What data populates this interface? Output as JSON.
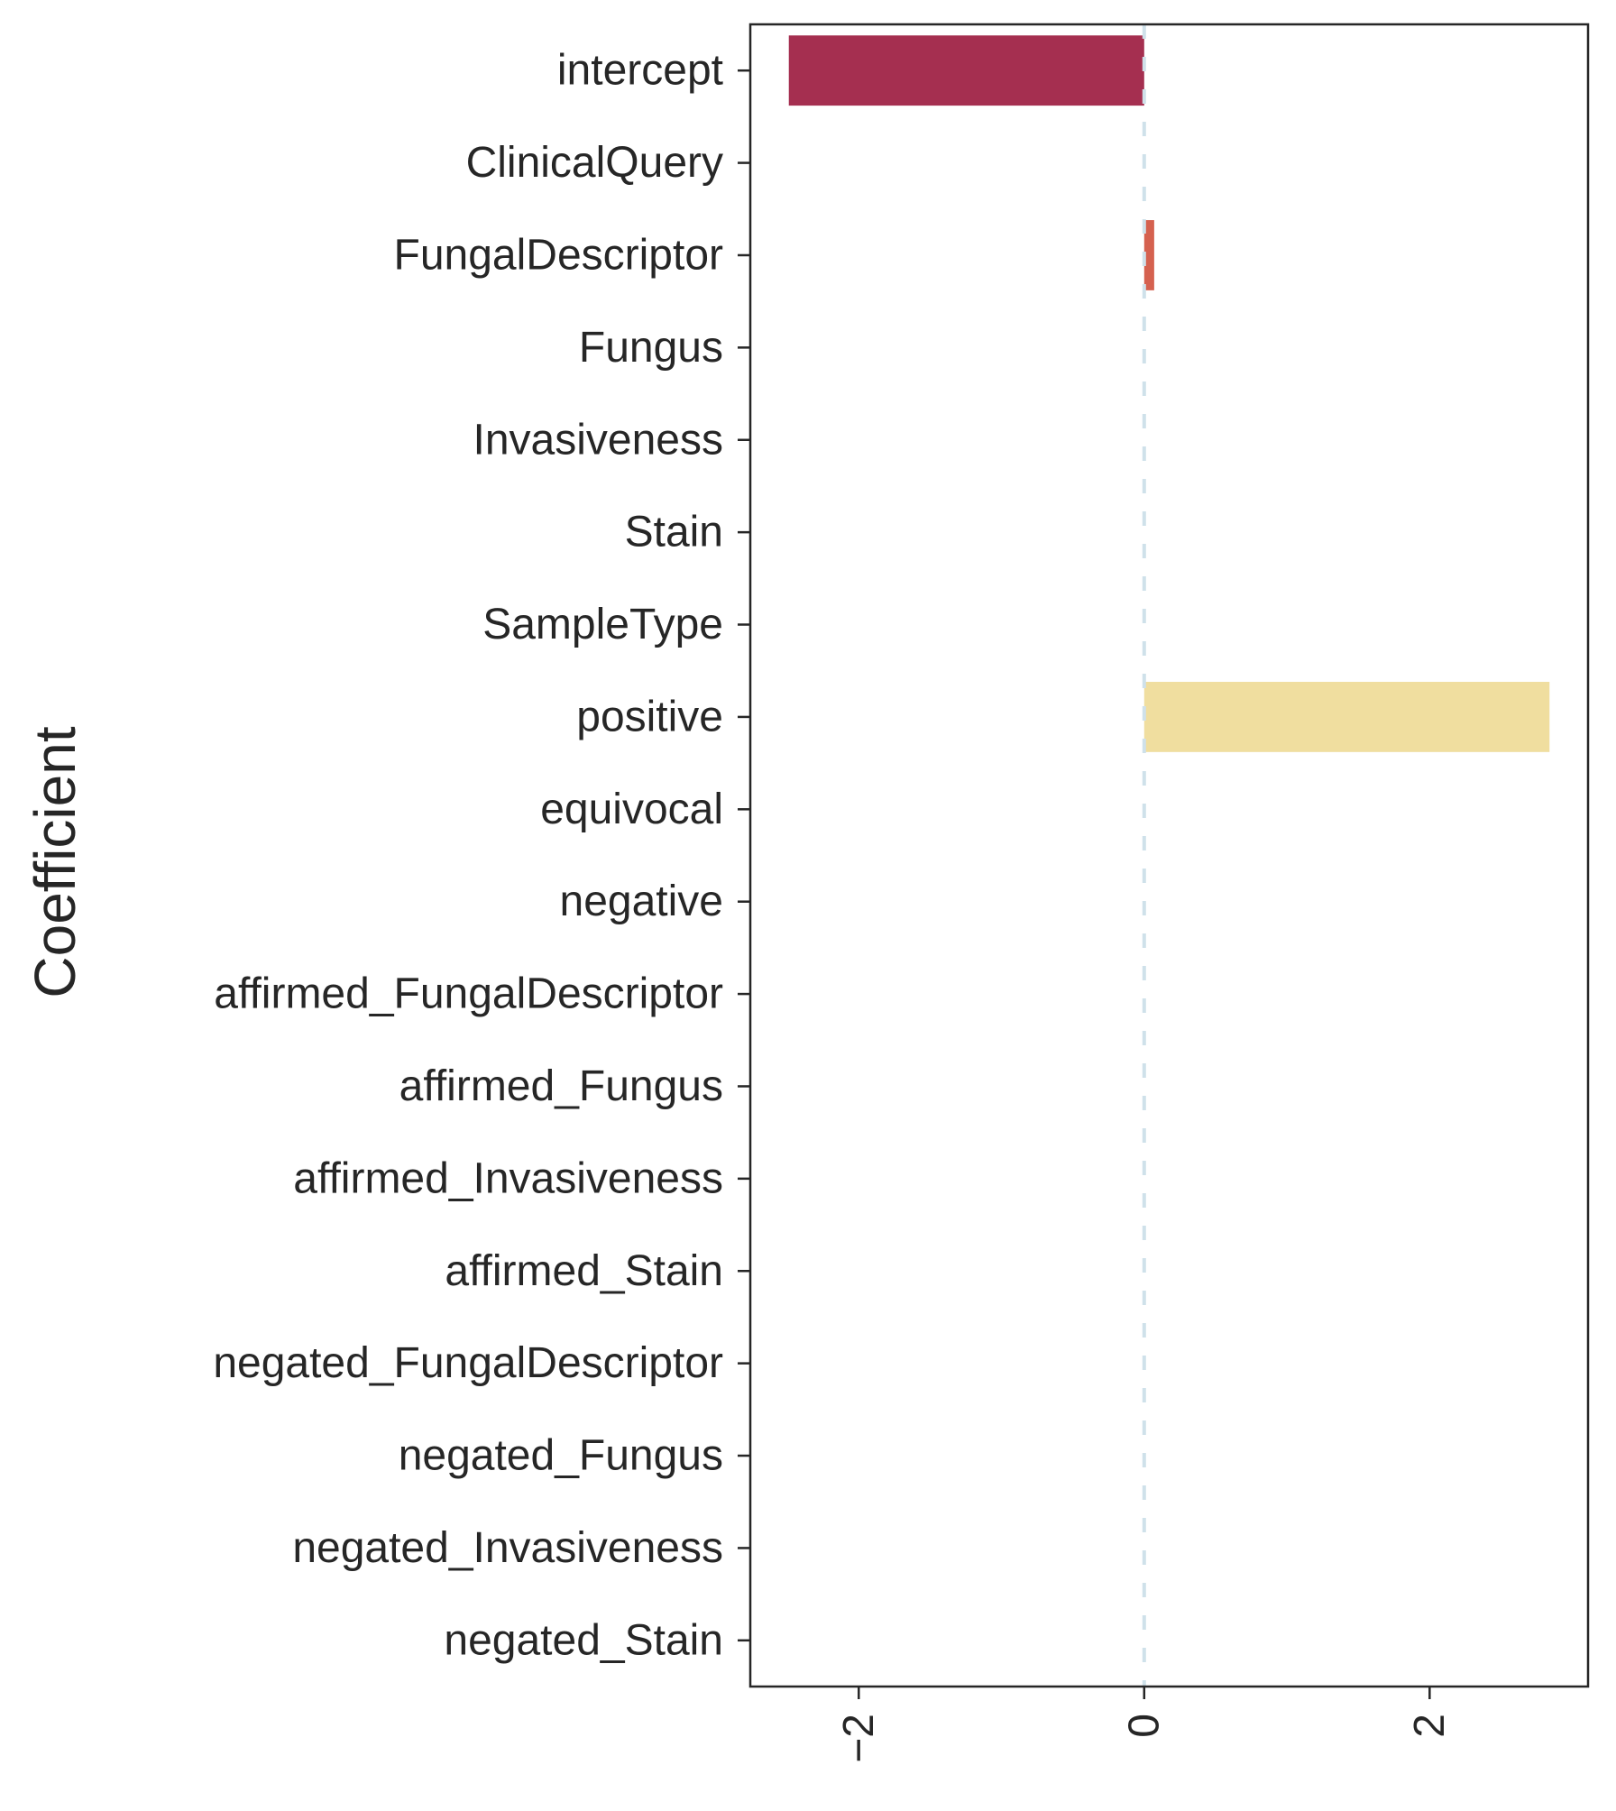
{
  "chart_data": {
    "type": "bar",
    "orientation": "horizontal",
    "title": "",
    "xlabel": "",
    "ylabel": "Coefficient",
    "categories": [
      "intercept",
      "ClinicalQuery",
      "FungalDescriptor",
      "Fungus",
      "Invasiveness",
      "Stain",
      "SampleType",
      "positive",
      "equivocal",
      "negative",
      "affirmed_FungalDescriptor",
      "affirmed_Fungus",
      "affirmed_Invasiveness",
      "affirmed_Stain",
      "negated_FungalDescriptor",
      "negated_Fungus",
      "negated_Invasiveness",
      "negated_Stain"
    ],
    "values": [
      -2.49,
      0.0,
      0.07,
      0.0,
      0.0,
      0.0,
      0.0,
      2.84,
      0.0,
      0.0,
      0.0,
      0.0,
      0.0,
      0.0,
      0.0,
      0.0,
      0.0,
      0.0
    ],
    "bar_colors": [
      "#a52f50",
      "#c24052",
      "#d5614f",
      "#e07a4f",
      "#e9974f",
      "#f0b55a",
      "#f0cd78",
      "#f0de9f",
      "#eef0b5",
      "#d4ecc0",
      "#b2dfc4",
      "#8fcfc4",
      "#6cbac6",
      "#57a2c5",
      "#4f88bf",
      "#5470b2",
      "#5d5aa3",
      "#5e4a94"
    ],
    "xlim": [
      -2.76,
      3.11
    ],
    "xticks": [
      -2,
      0,
      2
    ],
    "xtick_labels": [
      "−2",
      "0",
      "2"
    ],
    "reference_line": {
      "x": 0,
      "style": "dashed",
      "color": "#cfe1ea"
    },
    "grid": false,
    "legend": "none"
  }
}
